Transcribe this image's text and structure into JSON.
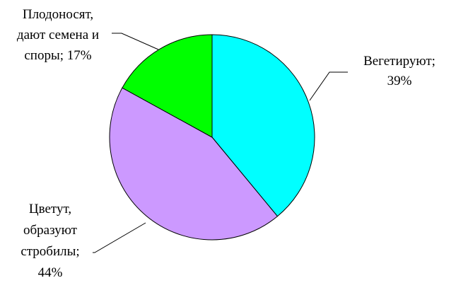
{
  "chart_data": {
    "type": "pie",
    "start_angle_deg": 0,
    "direction": "clockwise",
    "legend": "none",
    "slices": [
      {
        "name": "Вегетируют",
        "value": 39,
        "color": "#00FFFF",
        "label_lines": [
          "Вегетируют;",
          "39%"
        ]
      },
      {
        "name": "Цветут, образуют стробилы",
        "value": 44,
        "color": "#CC99FF",
        "label_lines": [
          "Цветут,",
          "образуют",
          "стробилы;",
          "44%"
        ]
      },
      {
        "name": "Плодоносят, дают семена и споры",
        "value": 17,
        "color": "#00FF00",
        "label_lines": [
          "Плодоносят,",
          "дают семена и",
          "споры; 17%"
        ]
      }
    ]
  }
}
